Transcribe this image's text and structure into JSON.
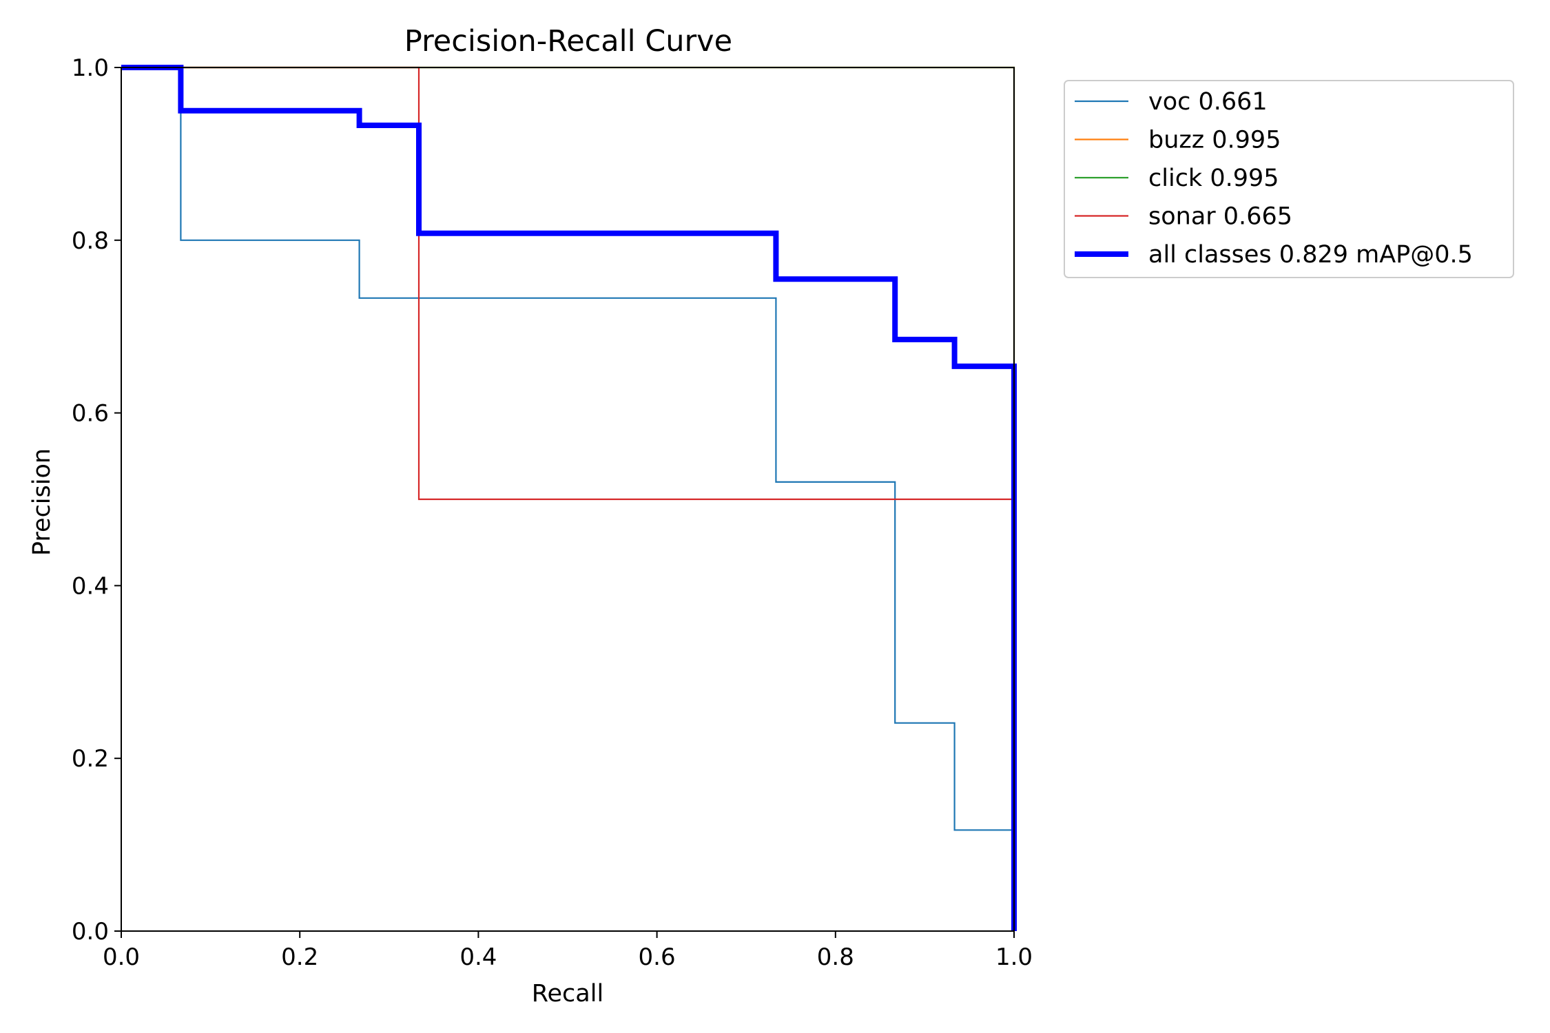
{
  "chart_data": {
    "type": "line",
    "title": "Precision-Recall Curve",
    "xlabel": "Recall",
    "ylabel": "Precision",
    "xlim": [
      0,
      1
    ],
    "ylim": [
      0,
      1
    ],
    "grid": false,
    "legend_position": "outside-top-right",
    "xticks": [
      "0.0",
      "0.2",
      "0.4",
      "0.6",
      "0.8",
      "1.0"
    ],
    "yticks": [
      "0.0",
      "0.2",
      "0.4",
      "0.6",
      "0.8",
      "1.0"
    ],
    "series": [
      {
        "name": "voc",
        "label": "voc 0.661",
        "color": "#1f77b4",
        "weight": "thin",
        "points": [
          [
            0,
            1.0
          ],
          [
            0.0667,
            1.0
          ],
          [
            0.0667,
            0.8
          ],
          [
            0.2667,
            0.8
          ],
          [
            0.2667,
            0.733
          ],
          [
            0.7333,
            0.733
          ],
          [
            0.7333,
            0.52
          ],
          [
            0.8667,
            0.52
          ],
          [
            0.8667,
            0.241
          ],
          [
            0.9333,
            0.241
          ],
          [
            0.9333,
            0.117
          ],
          [
            1.0,
            0.117
          ],
          [
            1.0,
            0.0
          ]
        ]
      },
      {
        "name": "buzz",
        "label": "buzz 0.995",
        "color": "#ff7f0e",
        "weight": "thin",
        "points": [
          [
            0,
            1.0
          ],
          [
            1.0,
            1.0
          ],
          [
            1.0,
            0.0
          ]
        ]
      },
      {
        "name": "click",
        "label": "click 0.995",
        "color": "#2ca02c",
        "weight": "thin",
        "points": [
          [
            0,
            1.0
          ],
          [
            1.0,
            1.0
          ],
          [
            1.0,
            0.0
          ]
        ]
      },
      {
        "name": "sonar",
        "label": "sonar 0.665",
        "color": "#d62728",
        "weight": "thin",
        "points": [
          [
            0,
            1.0
          ],
          [
            0.3333,
            1.0
          ],
          [
            0.3333,
            0.5
          ],
          [
            1.0,
            0.5
          ],
          [
            1.0,
            0.0
          ]
        ]
      },
      {
        "name": "all classes",
        "label": "all classes 0.829 mAP@0.5",
        "color": "#0000ff",
        "weight": "thick",
        "points": [
          [
            0,
            1.0
          ],
          [
            0.0667,
            1.0
          ],
          [
            0.0667,
            0.95
          ],
          [
            0.2667,
            0.95
          ],
          [
            0.2667,
            0.933
          ],
          [
            0.3333,
            0.933
          ],
          [
            0.3333,
            0.808
          ],
          [
            0.7333,
            0.808
          ],
          [
            0.7333,
            0.755
          ],
          [
            0.8667,
            0.755
          ],
          [
            0.8667,
            0.685
          ],
          [
            0.9333,
            0.685
          ],
          [
            0.9333,
            0.654
          ],
          [
            1.0,
            0.654
          ],
          [
            1.0,
            0.0
          ]
        ]
      }
    ]
  }
}
